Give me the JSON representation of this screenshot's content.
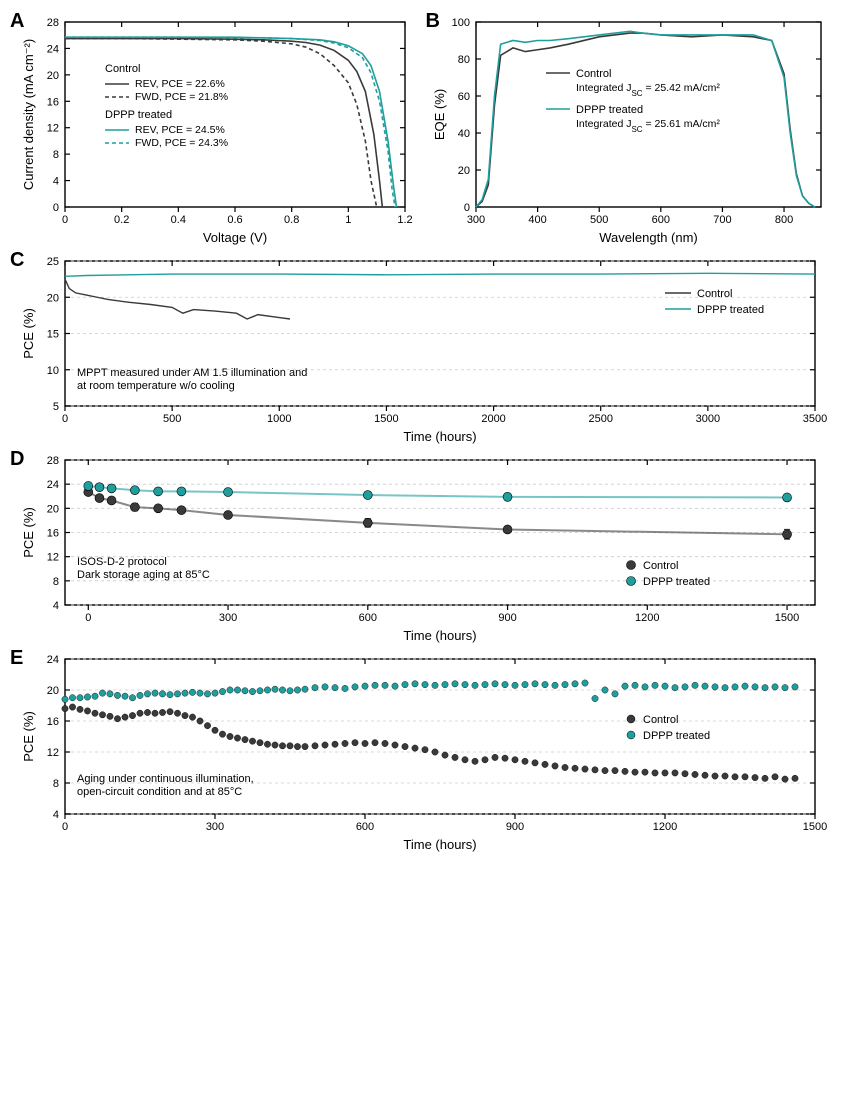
{
  "colors": {
    "control": "#3a3a3a",
    "dppp": "#1f9e9e",
    "axis": "#000000",
    "grid": "#cccccc",
    "bg": "#ffffff"
  },
  "panels": {
    "A": {
      "label": "A",
      "type": "line",
      "xlabel": "Voltage (V)",
      "ylabel": "Current density (mA cm⁻²)",
      "xlim": [
        0.0,
        1.2
      ],
      "xtick_step": 0.2,
      "ylim": [
        0,
        28
      ],
      "ytick_step": 4,
      "label_fontsize": 13,
      "tick_fontsize": 11,
      "legend_title1": "Control",
      "legend_title2": "DPPP treated",
      "series": [
        {
          "name": "Control REV",
          "label": "REV, PCE =  22.6%",
          "color": "#3a3a3a",
          "dash": "none",
          "width": 1.6,
          "x": [
            0,
            0.2,
            0.4,
            0.6,
            0.7,
            0.8,
            0.85,
            0.9,
            0.95,
            1.0,
            1.03,
            1.06,
            1.09,
            1.11,
            1.12
          ],
          "y": [
            25.5,
            25.5,
            25.5,
            25.4,
            25.3,
            25.1,
            24.9,
            24.5,
            23.7,
            22.2,
            20.5,
            17.5,
            11,
            4,
            0
          ]
        },
        {
          "name": "Control FWD",
          "label": "FWD, PCE = 21.8%",
          "color": "#3a3a3a",
          "dash": "4,3",
          "width": 1.6,
          "x": [
            0,
            0.2,
            0.4,
            0.6,
            0.7,
            0.8,
            0.85,
            0.9,
            0.95,
            1.0,
            1.03,
            1.06,
            1.08,
            1.1
          ],
          "y": [
            25.5,
            25.5,
            25.4,
            25.3,
            25.1,
            24.7,
            24.2,
            23.2,
            21.4,
            18.8,
            15.5,
            10,
            4,
            0
          ]
        },
        {
          "name": "DPPP REV",
          "label": "REV, PCE =  24.5%",
          "color": "#1f9e9e",
          "dash": "none",
          "width": 1.6,
          "x": [
            0,
            0.2,
            0.4,
            0.6,
            0.7,
            0.8,
            0.9,
            0.95,
            1.0,
            1.05,
            1.08,
            1.11,
            1.14,
            1.16,
            1.17
          ],
          "y": [
            25.7,
            25.7,
            25.7,
            25.7,
            25.6,
            25.5,
            25.3,
            25.0,
            24.4,
            23.2,
            21.4,
            17.5,
            10,
            3,
            0
          ]
        },
        {
          "name": "DPPP FWD",
          "label": "FWD, PCE = 24.3%",
          "color": "#1f9e9e",
          "dash": "4,3",
          "width": 1.6,
          "x": [
            0,
            0.2,
            0.4,
            0.6,
            0.7,
            0.8,
            0.9,
            0.95,
            1.0,
            1.05,
            1.08,
            1.11,
            1.14,
            1.155,
            1.165
          ],
          "y": [
            25.7,
            25.7,
            25.7,
            25.6,
            25.6,
            25.5,
            25.2,
            24.8,
            24.1,
            22.6,
            20.3,
            16,
            8.5,
            2.5,
            0
          ]
        }
      ]
    },
    "B": {
      "label": "B",
      "type": "line",
      "xlabel": "Wavelength (nm)",
      "ylabel": "EQE (%)",
      "xlim": [
        300,
        860
      ],
      "xtick_step": 100,
      "ylim": [
        0,
        100
      ],
      "ytick_step": 20,
      "label_fontsize": 13,
      "tick_fontsize": 11,
      "legend_lines": [
        {
          "title": "Control",
          "sub": "Integrated J_{SC} = 25.42 mA/cm²",
          "color": "#3a3a3a"
        },
        {
          "title": "DPPP treated",
          "sub": "Integrated J_{SC} = 25.61 mA/cm²",
          "color": "#1f9e9e"
        }
      ],
      "series": [
        {
          "name": "Control",
          "color": "#3a3a3a",
          "dash": "none",
          "width": 1.6,
          "x": [
            300,
            310,
            320,
            330,
            340,
            360,
            380,
            400,
            420,
            450,
            500,
            550,
            570,
            600,
            650,
            700,
            750,
            780,
            800,
            810,
            820,
            830,
            840,
            850
          ],
          "y": [
            0,
            3,
            12,
            55,
            82,
            86,
            84,
            85,
            86,
            88,
            92,
            94,
            94,
            93,
            92,
            93,
            92,
            90,
            72,
            42,
            18,
            6,
            2,
            0
          ]
        },
        {
          "name": "DPPP",
          "color": "#1f9e9e",
          "dash": "none",
          "width": 1.6,
          "x": [
            300,
            310,
            320,
            330,
            340,
            360,
            380,
            400,
            420,
            450,
            500,
            550,
            570,
            600,
            650,
            700,
            750,
            780,
            800,
            810,
            820,
            830,
            840,
            850
          ],
          "y": [
            0,
            4,
            15,
            60,
            88,
            90,
            89,
            90,
            90,
            91,
            93,
            95,
            94,
            93,
            93,
            93,
            93,
            90,
            70,
            40,
            17,
            6,
            2,
            0
          ]
        }
      ]
    },
    "C": {
      "label": "C",
      "type": "line",
      "xlabel": "Time (hours)",
      "ylabel": "PCE (%)",
      "xlim": [
        0,
        3500
      ],
      "xtick_step": 500,
      "ylim": [
        5,
        25
      ],
      "ytick_step": 5,
      "grid_y": true,
      "grid_dash": "3,3",
      "note": "MPPT measured under AM 1.5 illumination and\nat room temperature w/o cooling",
      "legend": [
        {
          "label": "Control",
          "color": "#3a3a3a"
        },
        {
          "label": "DPPP treated",
          "color": "#1f9e9e"
        }
      ],
      "series": [
        {
          "name": "Control",
          "color": "#3a3a3a",
          "width": 1.4,
          "x": [
            0,
            20,
            50,
            100,
            150,
            200,
            300,
            400,
            500,
            550,
            600,
            700,
            800,
            850,
            900,
            1000,
            1050
          ],
          "y": [
            22.5,
            21.2,
            20.6,
            20.3,
            20.0,
            19.7,
            19.3,
            19.0,
            18.6,
            17.8,
            18.3,
            18.1,
            17.8,
            17.0,
            17.6,
            17.2,
            17.0
          ]
        },
        {
          "name": "DPPP",
          "color": "#1f9e9e",
          "width": 1.4,
          "x": [
            0,
            20,
            100,
            500,
            1000,
            1500,
            2000,
            2500,
            3000,
            3500
          ],
          "y": [
            22.9,
            22.9,
            23.0,
            23.2,
            23.2,
            23.1,
            23.2,
            23.2,
            23.3,
            23.2
          ]
        }
      ]
    },
    "D": {
      "label": "D",
      "type": "scatter-line",
      "xlabel": "Time (hours)",
      "ylabel": "PCE (%)",
      "xlim": [
        -50,
        1560
      ],
      "xticks": [
        0,
        300,
        600,
        900,
        1200,
        1500
      ],
      "ylim": [
        4,
        28
      ],
      "ytick_step": 4,
      "grid_y": true,
      "grid_dash": "3,3",
      "note": "ISOS-D-2 protocol\nDark storage aging at 85°C",
      "legend": [
        {
          "label": "Control",
          "color": "#3a3a3a",
          "marker": "circle"
        },
        {
          "label": "DPPP treated",
          "color": "#1f9e9e",
          "marker": "circle"
        }
      ],
      "series": [
        {
          "name": "Control",
          "color": "#3a3a3a",
          "width": 2,
          "marker_r": 4.5,
          "x": [
            0,
            24,
            50,
            100,
            150,
            200,
            300,
            600,
            900,
            1500
          ],
          "y": [
            22.7,
            21.7,
            21.3,
            20.2,
            20.0,
            19.7,
            18.9,
            17.6,
            16.5,
            15.7
          ],
          "err": [
            0.5,
            0.4,
            0.4,
            0.6,
            0.5,
            0.4,
            0.5,
            0.7,
            0.5,
            0.8
          ]
        },
        {
          "name": "DPPP",
          "color": "#1f9e9e",
          "width": 2,
          "marker_r": 4.5,
          "x": [
            0,
            24,
            50,
            100,
            150,
            200,
            300,
            600,
            900,
            1500
          ],
          "y": [
            23.7,
            23.5,
            23.3,
            23.0,
            22.8,
            22.8,
            22.7,
            22.2,
            21.9,
            21.8
          ],
          "err": [
            0.5,
            0.4,
            0.5,
            0.5,
            0.4,
            0.5,
            0.4,
            0.5,
            0.6,
            0.5
          ]
        }
      ]
    },
    "E": {
      "label": "E",
      "type": "scatter",
      "xlabel": "Time (hours)",
      "ylabel": "PCE (%)",
      "xlim": [
        0,
        1500
      ],
      "xtick_step": 300,
      "ylim": [
        4,
        24
      ],
      "ytick_step": 4,
      "grid_y": true,
      "grid_dash": "3,3",
      "note": "Aging under continuous illumination,\nopen-circuit condition and at 85°C",
      "legend": [
        {
          "label": "Control",
          "color": "#3a3a3a",
          "marker": "circle"
        },
        {
          "label": "DPPP treated",
          "color": "#1f9e9e",
          "marker": "circle"
        }
      ],
      "series": [
        {
          "name": "Control",
          "color": "#3a3a3a",
          "marker_r": 3.2,
          "x": [
            0,
            15,
            30,
            45,
            60,
            75,
            90,
            105,
            120,
            135,
            150,
            165,
            180,
            195,
            210,
            225,
            240,
            255,
            270,
            285,
            300,
            315,
            330,
            345,
            360,
            375,
            390,
            405,
            420,
            435,
            450,
            465,
            480,
            500,
            520,
            540,
            560,
            580,
            600,
            620,
            640,
            660,
            680,
            700,
            720,
            740,
            760,
            780,
            800,
            820,
            840,
            860,
            880,
            900,
            920,
            940,
            960,
            980,
            1000,
            1020,
            1040,
            1060,
            1080,
            1100,
            1120,
            1140,
            1160,
            1180,
            1200,
            1220,
            1240,
            1260,
            1280,
            1300,
            1320,
            1340,
            1360,
            1380,
            1400,
            1420,
            1440,
            1460
          ],
          "y": [
            17.6,
            17.8,
            17.5,
            17.3,
            17.0,
            16.8,
            16.6,
            16.3,
            16.5,
            16.7,
            17.0,
            17.1,
            17.0,
            17.1,
            17.2,
            17.0,
            16.7,
            16.5,
            16.0,
            15.4,
            14.8,
            14.3,
            14.0,
            13.8,
            13.6,
            13.4,
            13.2,
            13.0,
            12.9,
            12.8,
            12.8,
            12.7,
            12.7,
            12.8,
            12.9,
            13.0,
            13.1,
            13.2,
            13.1,
            13.2,
            13.1,
            12.9,
            12.7,
            12.5,
            12.3,
            12.0,
            11.6,
            11.3,
            11.0,
            10.8,
            11.0,
            11.3,
            11.2,
            11.0,
            10.8,
            10.6,
            10.4,
            10.2,
            10.0,
            9.9,
            9.8,
            9.7,
            9.6,
            9.6,
            9.5,
            9.4,
            9.4,
            9.3,
            9.3,
            9.3,
            9.2,
            9.1,
            9.0,
            8.9,
            8.9,
            8.8,
            8.8,
            8.7,
            8.6,
            8.8,
            8.5,
            8.6
          ]
        },
        {
          "name": "DPPP",
          "color": "#1f9e9e",
          "marker_r": 3.2,
          "x": [
            0,
            15,
            30,
            45,
            60,
            75,
            90,
            105,
            120,
            135,
            150,
            165,
            180,
            195,
            210,
            225,
            240,
            255,
            270,
            285,
            300,
            315,
            330,
            345,
            360,
            375,
            390,
            405,
            420,
            435,
            450,
            465,
            480,
            500,
            520,
            540,
            560,
            580,
            600,
            620,
            640,
            660,
            680,
            700,
            720,
            740,
            760,
            780,
            800,
            820,
            840,
            860,
            880,
            900,
            920,
            940,
            960,
            980,
            1000,
            1020,
            1040,
            1060,
            1080,
            1100,
            1120,
            1140,
            1160,
            1180,
            1200,
            1220,
            1240,
            1260,
            1280,
            1300,
            1320,
            1340,
            1360,
            1380,
            1400,
            1420,
            1440,
            1460
          ],
          "y": [
            18.8,
            19.0,
            19.0,
            19.1,
            19.2,
            19.6,
            19.5,
            19.3,
            19.2,
            19.0,
            19.3,
            19.5,
            19.6,
            19.5,
            19.4,
            19.5,
            19.6,
            19.7,
            19.6,
            19.5,
            19.6,
            19.8,
            20.0,
            20.0,
            19.9,
            19.8,
            19.9,
            20.0,
            20.1,
            20.0,
            19.9,
            20.0,
            20.1,
            20.3,
            20.4,
            20.3,
            20.2,
            20.4,
            20.5,
            20.6,
            20.6,
            20.5,
            20.7,
            20.8,
            20.7,
            20.6,
            20.7,
            20.8,
            20.7,
            20.6,
            20.7,
            20.8,
            20.7,
            20.6,
            20.7,
            20.8,
            20.7,
            20.6,
            20.7,
            20.8,
            20.9,
            18.9,
            20.0,
            19.5,
            20.5,
            20.6,
            20.4,
            20.6,
            20.5,
            20.3,
            20.4,
            20.6,
            20.5,
            20.4,
            20.3,
            20.4,
            20.5,
            20.4,
            20.3,
            20.4,
            20.3,
            20.4
          ]
        }
      ]
    }
  }
}
